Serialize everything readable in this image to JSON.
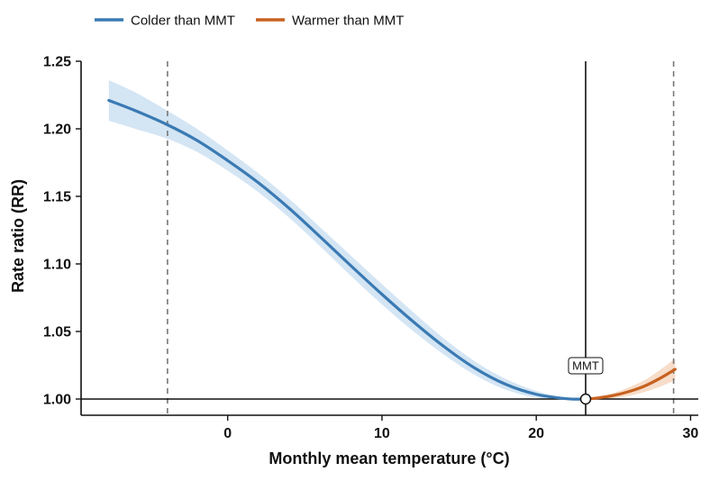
{
  "chart_data": {
    "type": "line",
    "xlabel": "Monthly mean temperature (°C)",
    "ylabel": "Rate ratio (RR)",
    "xlim": [
      -9.5,
      30.5
    ],
    "ylim": [
      0.988,
      1.25
    ],
    "x_ticks": [
      0,
      10,
      20,
      30
    ],
    "x_tick_labels": [
      "0",
      "10",
      "20",
      "30"
    ],
    "y_ticks": [
      1.0,
      1.05,
      1.1,
      1.15,
      1.2,
      1.25
    ],
    "y_tick_labels": [
      "1.00",
      "1.05",
      "1.10",
      "1.15",
      "1.20",
      "1.25"
    ],
    "reference_line_y": 1.0,
    "mmt": {
      "x": 23.2,
      "y": 1.0,
      "label": "MMT"
    },
    "percentile_lines_x": [
      -3.9,
      28.9
    ],
    "legend": {
      "position": "top-left",
      "entries": [
        "Colder than MMT",
        "Warmer than MMT"
      ]
    },
    "colors": {
      "cold": "#3a7ab3",
      "warm": "#c8611f",
      "cold_band": "#cfe2f3",
      "warm_band": "#f6d9c4"
    },
    "series": [
      {
        "name": "Colder than MMT",
        "x": [
          -7.7,
          -6,
          -4,
          -2,
          0,
          2,
          4,
          6,
          8,
          10,
          12,
          14,
          16,
          18,
          20,
          22,
          23.2
        ],
        "y": [
          1.221,
          1.2135,
          1.2035,
          1.1915,
          1.1765,
          1.16,
          1.141,
          1.12,
          1.0985,
          1.0775,
          1.0575,
          1.039,
          1.023,
          1.011,
          1.0035,
          1.0002,
          1.0
        ],
        "lower": [
          1.206,
          1.2,
          1.193,
          1.183,
          1.169,
          1.153,
          1.134,
          1.113,
          1.091,
          1.07,
          1.0505,
          1.033,
          1.018,
          1.007,
          1.001,
          0.9995,
          1.0
        ],
        "upper": [
          1.236,
          1.227,
          1.214,
          1.2,
          1.184,
          1.167,
          1.148,
          1.127,
          1.106,
          1.085,
          1.0645,
          1.045,
          1.028,
          1.015,
          1.006,
          1.0009,
          1.0
        ]
      },
      {
        "name": "Warmer than MMT",
        "x": [
          23.2,
          24,
          25,
          26,
          27,
          28,
          29
        ],
        "y": [
          1.0,
          1.0008,
          1.0026,
          1.0055,
          1.0095,
          1.0152,
          1.022
        ],
        "lower": [
          1.0,
          0.9998,
          1.0006,
          1.0023,
          1.0052,
          1.009,
          1.014
        ],
        "upper": [
          1.0,
          1.0018,
          1.0046,
          1.0087,
          1.0138,
          1.0214,
          1.03
        ]
      }
    ]
  }
}
